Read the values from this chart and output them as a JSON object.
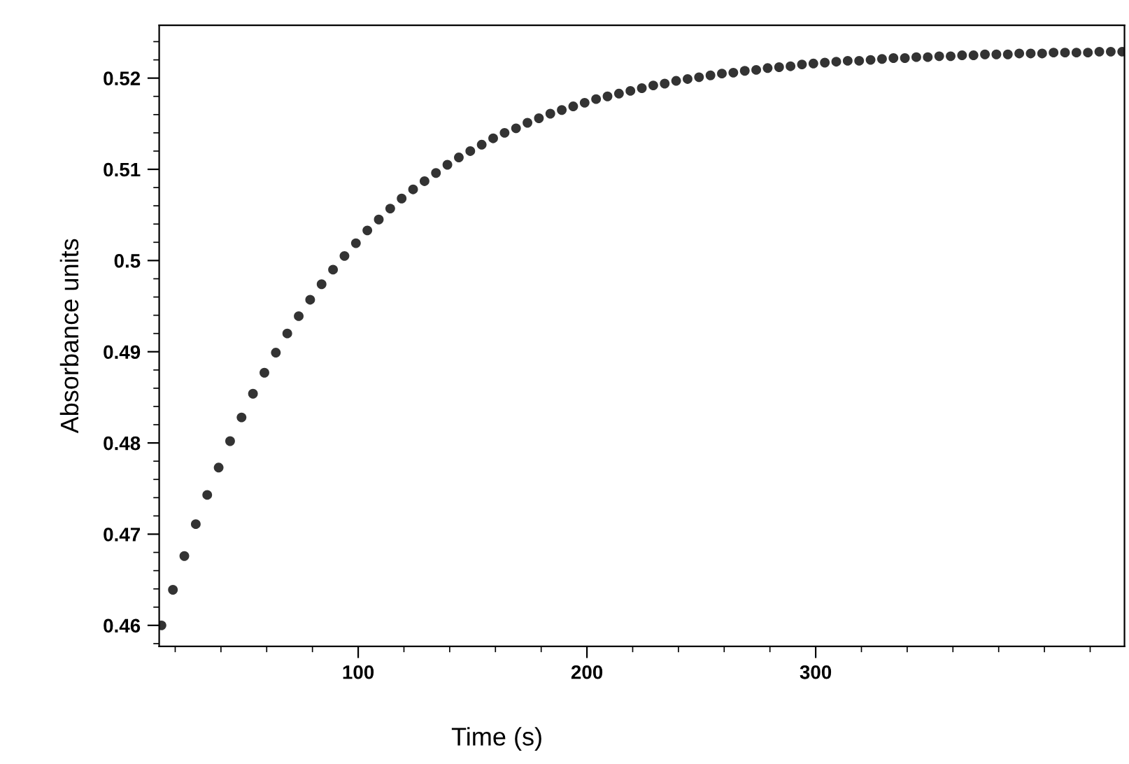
{
  "chart_data": {
    "type": "scatter",
    "xlabel": "Time (s)",
    "ylabel": "Absorbance units",
    "marker": "circle",
    "grid": false,
    "legend": false,
    "xlim": [
      13,
      435
    ],
    "xticks": [
      100,
      200,
      300
    ],
    "ylim": [
      0.4577,
      0.5258
    ],
    "yticks": [
      0.46,
      0.47,
      0.48,
      0.49,
      0.5,
      0.51,
      0.52
    ],
    "series": [
      {
        "color": "#333333",
        "x": [
          14,
          19,
          24,
          29,
          34,
          39,
          44,
          49,
          54,
          59,
          64,
          69,
          74,
          79,
          84,
          89,
          94,
          99,
          104,
          109,
          114,
          119,
          124,
          129,
          134,
          139,
          144,
          149,
          154,
          159,
          164,
          169,
          174,
          179,
          184,
          189,
          194,
          199,
          204,
          209,
          214,
          219,
          224,
          229,
          234,
          239,
          244,
          249,
          254,
          259,
          264,
          269,
          274,
          279,
          284,
          289,
          294,
          299,
          304,
          309,
          314,
          319,
          324,
          329,
          334,
          339,
          344,
          349,
          354,
          359,
          364,
          369,
          374,
          379,
          384,
          389,
          394,
          399,
          404,
          409,
          414,
          419,
          424,
          429,
          434
        ],
        "values": [
          0.46,
          0.4639,
          0.4676,
          0.4711,
          0.4743,
          0.4773,
          0.4802,
          0.4828,
          0.4854,
          0.4877,
          0.4899,
          0.492,
          0.4939,
          0.4957,
          0.4974,
          0.499,
          0.5005,
          0.5019,
          0.5033,
          0.5045,
          0.5057,
          0.5068,
          0.5078,
          0.5087,
          0.5096,
          0.5105,
          0.5113,
          0.512,
          0.5127,
          0.5134,
          0.514,
          0.5145,
          0.5151,
          0.5156,
          0.5161,
          0.5165,
          0.5169,
          0.5173,
          0.5177,
          0.518,
          0.5183,
          0.5186,
          0.5189,
          0.5192,
          0.5194,
          0.5197,
          0.5199,
          0.5201,
          0.5203,
          0.5205,
          0.5206,
          0.5208,
          0.5209,
          0.5211,
          0.5212,
          0.5213,
          0.5215,
          0.5216,
          0.5217,
          0.5218,
          0.5219,
          0.5219,
          0.522,
          0.5221,
          0.5222,
          0.5222,
          0.5223,
          0.5223,
          0.5224,
          0.5224,
          0.5225,
          0.5225,
          0.5226,
          0.5226,
          0.5226,
          0.5227,
          0.5227,
          0.5227,
          0.5228,
          0.5228,
          0.5228,
          0.5228,
          0.5229,
          0.5229,
          0.5229
        ]
      }
    ]
  }
}
